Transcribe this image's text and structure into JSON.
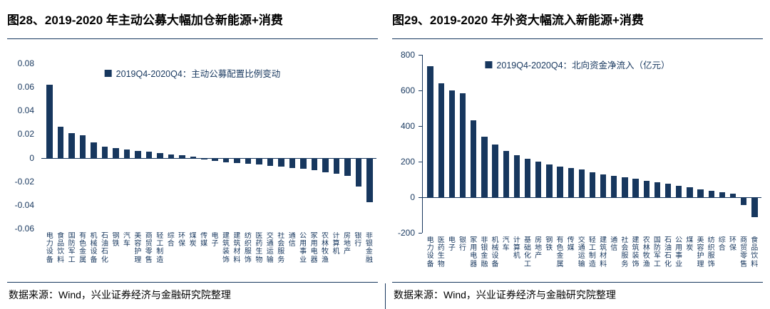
{
  "colors": {
    "bar": "#17375E",
    "axis_text": "#17375E",
    "rule": "#17375E",
    "title_text": "#000000",
    "source_text": "#000000"
  },
  "figures": [
    {
      "source": "数据来源：Wind，兴业证券经济与金融研究院整理"
    },
    {
      "source": "数据来源：Wind，兴业证券经济与金融研究院整理"
    }
  ],
  "chart_data": [
    {
      "type": "bar",
      "title": "图28、2019-2020 年主动公募大幅加仓新能源+消费",
      "legend": "2019Q4-2020Q4：主动公募配置比例变动",
      "legend_position": "top-center",
      "grid": false,
      "y_axis_line": false,
      "ylim": [
        -0.06,
        0.08
      ],
      "yticks": [
        {
          "v": 0.08,
          "label": "0.08"
        },
        {
          "v": 0.06,
          "label": "0.06"
        },
        {
          "v": 0.04,
          "label": "0.04"
        },
        {
          "v": 0.02,
          "label": "0.02"
        },
        {
          "v": 0,
          "label": "0"
        },
        {
          "v": -0.02,
          "label": "-0.02"
        },
        {
          "v": -0.04,
          "label": "-0.04"
        },
        {
          "v": -0.06,
          "label": "-0.06"
        }
      ],
      "categories": [
        "电力设备",
        "食品饮料",
        "国防军工",
        "有色金属",
        "机械设备",
        "石油石化",
        "钢铁",
        "汽车",
        "美容护理",
        "商贸零售",
        "轻工制造",
        "综合",
        "环保",
        "煤炭",
        "传媒",
        "电子",
        "建筑装饰",
        "建筑材料",
        "纺织服饰",
        "医药生物",
        "交通运输",
        "社会服务",
        "通信",
        "公用事业",
        "家用电器",
        "农林牧渔",
        "计算机",
        "房地产",
        "银行",
        "非银金融"
      ],
      "values": [
        0.062,
        0.026,
        0.021,
        0.019,
        0.013,
        0.0095,
        0.008,
        0.007,
        0.006,
        0.005,
        0.004,
        0.003,
        0.002,
        0.001,
        -0.001,
        -0.002,
        -0.003,
        -0.004,
        -0.0045,
        -0.005,
        -0.006,
        -0.007,
        -0.008,
        -0.009,
        -0.01,
        -0.012,
        -0.013,
        -0.015,
        -0.024,
        -0.037
      ]
    },
    {
      "type": "bar",
      "title": "图29、2019-2020 年外资大幅流入新能源+消费",
      "legend": "2019Q4-2020Q4：北向资金净流入（亿元）",
      "legend_position": "top-center",
      "grid": false,
      "y_axis_line": true,
      "ylim": [
        -200,
        800
      ],
      "yticks": [
        {
          "v": 800,
          "label": "800"
        },
        {
          "v": 600,
          "label": "600"
        },
        {
          "v": 400,
          "label": "400"
        },
        {
          "v": 200,
          "label": "200"
        },
        {
          "v": 0,
          "label": "0"
        },
        {
          "v": -200,
          "label": "-200"
        }
      ],
      "categories": [
        "电力设备",
        "医药生物",
        "电子",
        "银行",
        "家用电器",
        "非银金融",
        "机械设备",
        "汽车",
        "计算机",
        "基础化工",
        "房地产",
        "钢铁",
        "有色金属",
        "传媒",
        "交通运输",
        "轻工制造",
        "建筑材料",
        "通信",
        "社会服务",
        "建筑装饰",
        "农林牧渔",
        "国防军工",
        "石油石化",
        "公用事业",
        "煤炭",
        "美容护理",
        "纺织服饰",
        "综合",
        "环保",
        "商贸零售",
        "食品饮料"
      ],
      "values": [
        738,
        642,
        601,
        583,
        432,
        341,
        298,
        262,
        238,
        218,
        200,
        186,
        172,
        166,
        158,
        142,
        130,
        122,
        112,
        103,
        94,
        84,
        75,
        63,
        55,
        46,
        38,
        30,
        22,
        -40,
        -108
      ]
    }
  ]
}
